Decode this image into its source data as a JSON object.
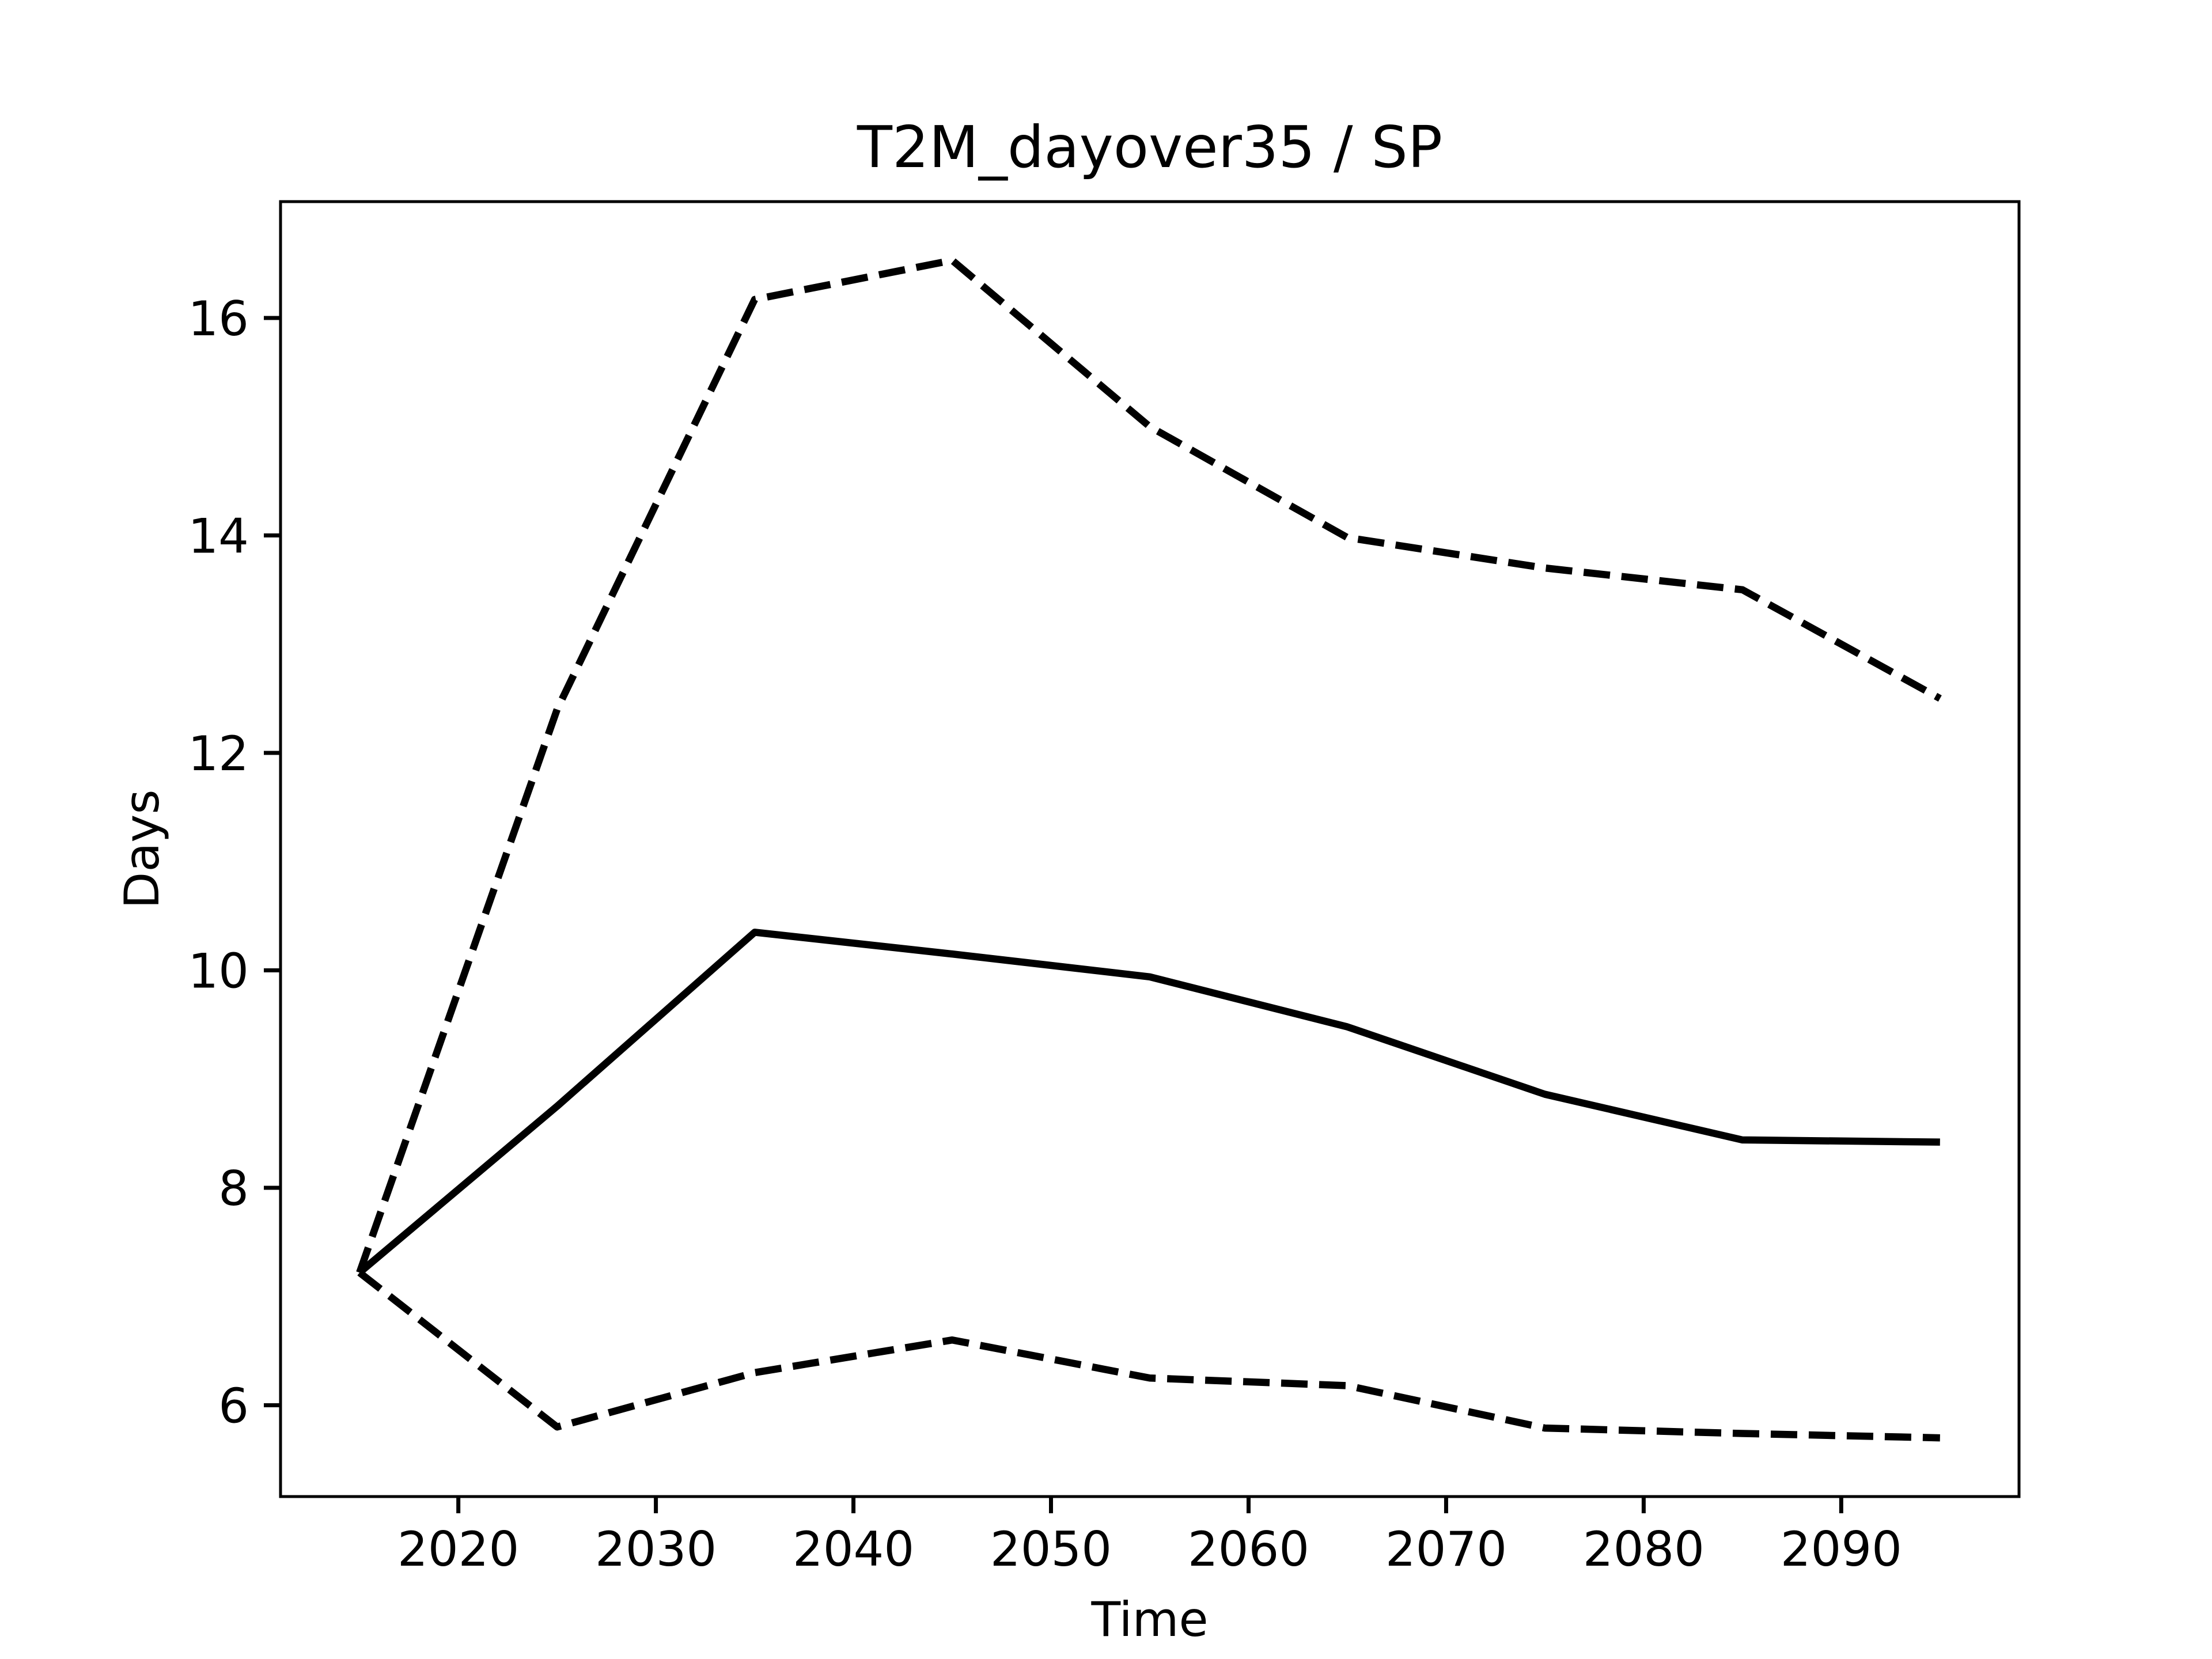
{
  "chart_data": {
    "type": "line",
    "title": "T2M_dayover35 / SP",
    "xlabel": "Time",
    "ylabel": "Days",
    "x": [
      2015,
      2025,
      2035,
      2045,
      2055,
      2065,
      2075,
      2085,
      2095
    ],
    "series": [
      {
        "color": "#000000",
        "linestyle": "dashed",
        "values": [
          7.22,
          12.4,
          16.17,
          16.53,
          15.0,
          13.98,
          13.7,
          13.5,
          12.5
        ]
      },
      {
        "color": "#000000",
        "linestyle": "solid",
        "values": [
          7.22,
          8.75,
          10.35,
          10.15,
          9.94,
          9.48,
          8.86,
          8.44,
          8.42
        ]
      },
      {
        "color": "#000000",
        "linestyle": "dashed",
        "values": [
          7.22,
          5.8,
          6.3,
          6.6,
          6.25,
          6.18,
          5.79,
          5.74,
          5.7
        ]
      }
    ],
    "xlim": [
      2011,
      2099
    ],
    "xticks": [
      2020,
      2030,
      2040,
      2050,
      2060,
      2070,
      2080,
      2090
    ],
    "ylim": [
      5.16,
      17.07
    ],
    "yticks": [
      6,
      8,
      10,
      12,
      14,
      16
    ],
    "grid": false
  }
}
